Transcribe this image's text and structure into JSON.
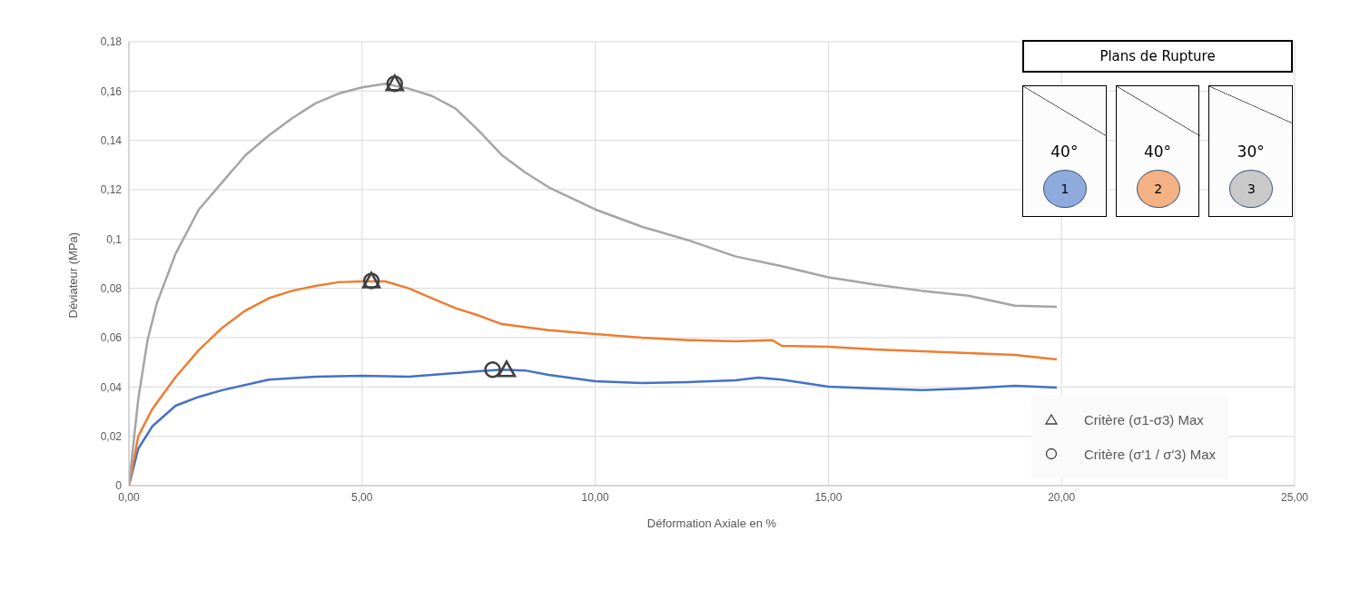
{
  "chart_data": {
    "type": "line",
    "xlabel": "Déformation Axiale en %",
    "ylabel": "Déviateur (MPa)",
    "xlim": [
      0,
      25
    ],
    "xticks": [
      {
        "value": 0,
        "label": "0,00"
      },
      {
        "value": 5,
        "label": "5,00"
      },
      {
        "value": 10,
        "label": "10,00"
      },
      {
        "value": 15,
        "label": "15,00"
      },
      {
        "value": 20,
        "label": "20,00"
      },
      {
        "value": 25,
        "label": "25,00"
      }
    ],
    "ylim": [
      0,
      0.18
    ],
    "yticks": [
      {
        "value": 0,
        "label": "0"
      },
      {
        "value": 0.02,
        "label": "0,02"
      },
      {
        "value": 0.04,
        "label": "0,04"
      },
      {
        "value": 0.06,
        "label": "0,06"
      },
      {
        "value": 0.08,
        "label": "0,08"
      },
      {
        "value": 0.1,
        "label": "0,1"
      },
      {
        "value": 0.12,
        "label": "0,12"
      },
      {
        "value": 0.14,
        "label": "0,14"
      },
      {
        "value": 0.16,
        "label": "0,16"
      },
      {
        "value": 0.18,
        "label": "0,18"
      }
    ],
    "grid": true,
    "legend": "bottom right",
    "marker": "none",
    "series": [
      {
        "color": "#4472c4",
        "x": [
          0,
          0.2,
          0.5,
          1,
          1.5,
          2,
          3,
          4,
          5,
          6,
          7,
          7.5,
          8,
          8.5,
          9,
          10,
          11,
          12,
          13,
          13.5,
          14,
          15,
          16,
          17,
          18,
          19,
          19.9
        ],
        "values": [
          0,
          0.015,
          0.024,
          0.0324,
          0.036,
          0.0387,
          0.043,
          0.0442,
          0.0445,
          0.0442,
          0.0456,
          0.0464,
          0.047,
          0.0467,
          0.0449,
          0.0423,
          0.0416,
          0.042,
          0.0427,
          0.0438,
          0.043,
          0.0401,
          0.0394,
          0.0387,
          0.0394,
          0.0405,
          0.0398
        ]
      },
      {
        "color": "#ed7d31",
        "x": [
          0,
          0.2,
          0.5,
          1,
          1.5,
          2,
          2.5,
          3,
          3.5,
          4,
          4.5,
          5,
          5.5,
          6,
          6.5,
          7,
          7.5,
          8,
          9,
          10,
          11,
          12,
          13,
          13.8,
          14,
          15,
          16,
          17,
          18,
          19,
          19.9
        ],
        "values": [
          0,
          0.02,
          0.031,
          0.044,
          0.055,
          0.064,
          0.071,
          0.076,
          0.079,
          0.081,
          0.0825,
          0.0828,
          0.0828,
          0.08,
          0.076,
          0.072,
          0.069,
          0.0655,
          0.063,
          0.0615,
          0.06,
          0.059,
          0.0585,
          0.059,
          0.0567,
          0.0563,
          0.0552,
          0.0545,
          0.0537,
          0.053,
          0.0512
        ]
      },
      {
        "color": "#a5a5a5",
        "x": [
          0,
          0.2,
          0.4,
          0.6,
          1,
          1.5,
          2,
          2.5,
          3,
          3.5,
          4,
          4.5,
          5,
          5.5,
          6,
          6.5,
          7,
          7.5,
          8,
          8.5,
          9,
          10,
          11,
          12,
          13,
          14,
          15,
          16,
          17,
          18,
          19,
          19.9
        ],
        "values": [
          0,
          0.035,
          0.059,
          0.074,
          0.094,
          0.112,
          0.123,
          0.134,
          0.142,
          0.149,
          0.155,
          0.159,
          0.1615,
          0.163,
          0.161,
          0.158,
          0.153,
          0.144,
          0.134,
          0.127,
          0.121,
          0.112,
          0.105,
          0.0995,
          0.093,
          0.089,
          0.0845,
          0.0815,
          0.079,
          0.077,
          0.073,
          0.0725
        ]
      },
      {
        "type": "scatter",
        "name": "Critère (σ1-σ3) Max",
        "marker": "triangle",
        "color": "#404040",
        "x": [
          8.1,
          5.2,
          5.7
        ],
        "values": [
          0.047,
          0.083,
          0.163
        ]
      },
      {
        "type": "scatter",
        "name": "Critère (σ'1 / σ'3) Max",
        "marker": "circle",
        "color": "#404040",
        "x": [
          7.8,
          5.2,
          5.7
        ],
        "values": [
          0.047,
          0.083,
          0.163
        ]
      }
    ],
    "annotations": [
      "Plans de Rupture",
      "40°",
      "1",
      "40°",
      "2",
      "30°",
      "3"
    ]
  }
}
